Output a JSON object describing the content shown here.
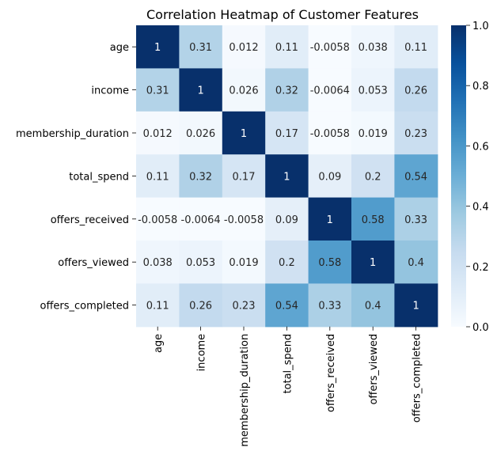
{
  "chart_data": {
    "type": "heatmap",
    "title": "Correlation Heatmap of Customer Features",
    "xlabel": "",
    "ylabel": "",
    "colormap": "Blues",
    "colors": {
      "low": "#f7fbff",
      "high": "#08306b"
    },
    "row_labels": [
      "age",
      "income",
      "membership_duration",
      "total_spend",
      "offers_received",
      "offers_viewed",
      "offers_completed"
    ],
    "col_labels": [
      "age",
      "income",
      "membership_duration",
      "total_spend",
      "offers_received",
      "offers_viewed",
      "offers_completed"
    ],
    "values": [
      [
        1,
        0.31,
        0.012,
        0.11,
        -0.0058,
        0.038,
        0.11
      ],
      [
        0.31,
        1,
        0.026,
        0.32,
        -0.0064,
        0.053,
        0.26
      ],
      [
        0.012,
        0.026,
        1,
        0.17,
        -0.0058,
        0.019,
        0.23
      ],
      [
        0.11,
        0.32,
        0.17,
        1,
        0.09,
        0.2,
        0.54
      ],
      [
        -0.0058,
        -0.0064,
        -0.0058,
        0.09,
        1,
        0.58,
        0.33
      ],
      [
        0.038,
        0.053,
        0.019,
        0.2,
        0.58,
        1,
        0.4
      ],
      [
        0.11,
        0.26,
        0.23,
        0.54,
        0.33,
        0.4,
        1
      ]
    ],
    "annotations": [
      [
        "1",
        "0.31",
        "0.012",
        "0.11",
        "-0.0058",
        "0.038",
        "0.11"
      ],
      [
        "0.31",
        "1",
        "0.026",
        "0.32",
        "-0.0064",
        "0.053",
        "0.26"
      ],
      [
        "0.012",
        "0.026",
        "1",
        "0.17",
        "-0.0058",
        "0.019",
        "0.23"
      ],
      [
        "0.11",
        "0.32",
        "0.17",
        "1",
        "0.09",
        "0.2",
        "0.54"
      ],
      [
        "-0.0058",
        "-0.0064",
        "-0.0058",
        "0.09",
        "1",
        "0.58",
        "0.33"
      ],
      [
        "0.038",
        "0.053",
        "0.019",
        "0.2",
        "0.58",
        "1",
        "0.4"
      ],
      [
        "0.11",
        "0.26",
        "0.23",
        "0.54",
        "0.33",
        "0.4",
        "1"
      ]
    ],
    "colorbar": {
      "range": [
        0.0,
        1.0
      ],
      "ticks": [
        "0.0",
        "0.2",
        "0.4",
        "0.6",
        "0.8",
        "1.0"
      ]
    }
  }
}
